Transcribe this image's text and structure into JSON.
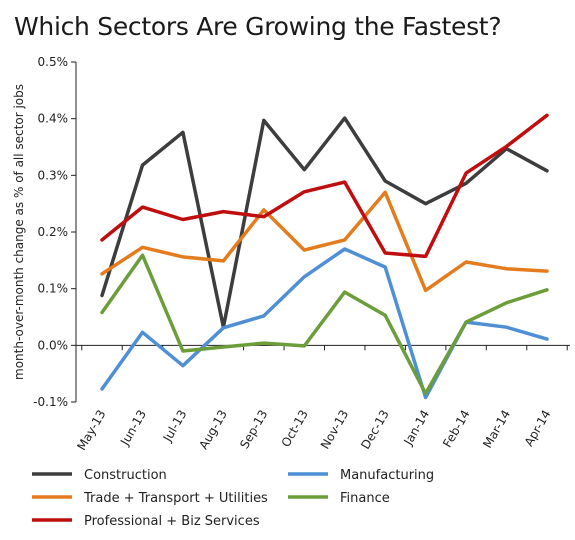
{
  "chart_data": {
    "type": "line",
    "title": "Which Sectors Are Growing the Fastest?",
    "xlabel": "",
    "ylabel": "month-over-month change as % of all sector jobs",
    "categories": [
      "May-13",
      "Jun-13",
      "Jul-13",
      "Aug-13",
      "Sep-13",
      "Oct-13",
      "Nov-13",
      "Dec-13",
      "Jan-14",
      "Feb-14",
      "Mar-14",
      "Apr-14"
    ],
    "ylim": [
      -0.1,
      0.5
    ],
    "yticks": [
      -0.1,
      0.0,
      0.1,
      0.2,
      0.3,
      0.4,
      0.5
    ],
    "ytick_labels": [
      "-0.1%",
      "0.0%",
      "0.1%",
      "0.2%",
      "0.3%",
      "0.4%",
      "0.5%"
    ],
    "grid": false,
    "legend_position": "bottom",
    "series": [
      {
        "name": "Construction",
        "color": "#3d3d3d",
        "values": [
          0.088,
          0.318,
          0.376,
          0.032,
          0.397,
          0.31,
          0.401,
          0.29,
          0.25,
          0.286,
          0.347,
          0.308
        ]
      },
      {
        "name": "Manufacturing",
        "color": "#4f8fd6",
        "values": [
          -0.077,
          0.023,
          -0.036,
          0.031,
          0.052,
          0.121,
          0.17,
          0.138,
          -0.092,
          0.041,
          0.032,
          0.011
        ]
      },
      {
        "name": "Trade + Transport + Utilities",
        "color": "#e47c1e",
        "values": [
          0.126,
          0.173,
          0.156,
          0.149,
          0.239,
          0.168,
          0.186,
          0.27,
          0.097,
          0.147,
          0.135,
          0.131
        ]
      },
      {
        "name": "Finance",
        "color": "#6b9e3a",
        "values": [
          0.058,
          0.159,
          -0.01,
          -0.003,
          0.004,
          -0.001,
          0.094,
          0.053,
          -0.085,
          0.041,
          0.075,
          0.098
        ]
      },
      {
        "name": "Professional + Biz Services",
        "color": "#c00d0d",
        "values": [
          0.186,
          0.244,
          0.222,
          0.236,
          0.227,
          0.271,
          0.288,
          0.163,
          0.157,
          0.304,
          0.351,
          0.406
        ]
      }
    ]
  }
}
